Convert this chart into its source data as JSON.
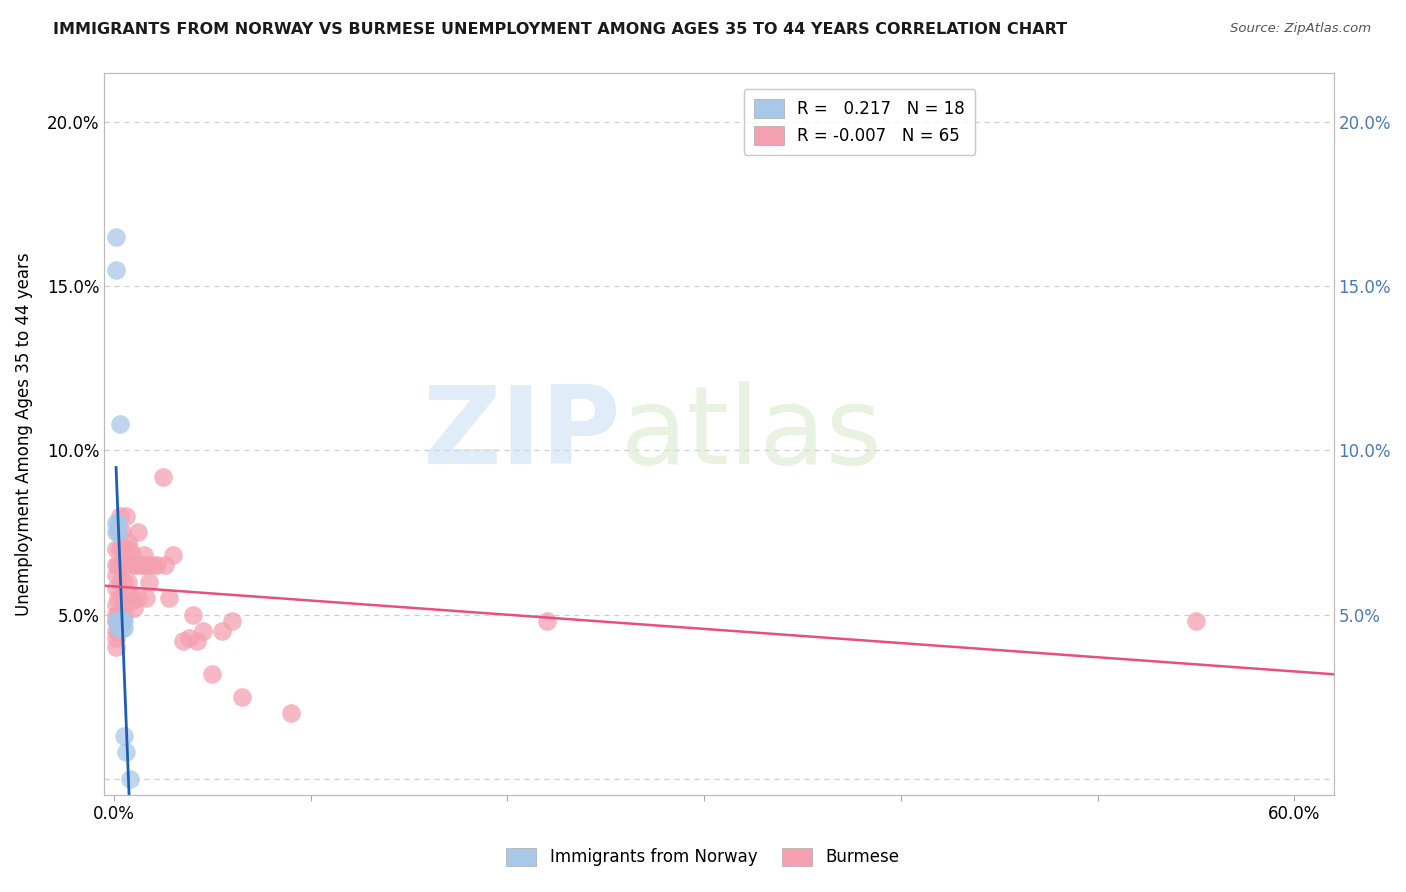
{
  "title": "IMMIGRANTS FROM NORWAY VS BURMESE UNEMPLOYMENT AMONG AGES 35 TO 44 YEARS CORRELATION CHART",
  "source": "Source: ZipAtlas.com",
  "ylabel": "Unemployment Among Ages 35 to 44 years",
  "xlim": [
    -0.005,
    0.62
  ],
  "ylim": [
    -0.005,
    0.215
  ],
  "xtick_positions": [
    0.0,
    0.1,
    0.2,
    0.3,
    0.4,
    0.5,
    0.6
  ],
  "xtick_labels_show": [
    "0.0%",
    "",
    "",
    "",
    "",
    "",
    "60.0%"
  ],
  "yticks": [
    0.0,
    0.05,
    0.1,
    0.15,
    0.2
  ],
  "ytick_labels": [
    "",
    "5.0%",
    "10.0%",
    "15.0%",
    "20.0%"
  ],
  "right_ytick_labels": [
    "",
    "5.0%",
    "10.0%",
    "15.0%",
    "20.0%"
  ],
  "norway_R": 0.217,
  "norway_N": 18,
  "burmese_R": -0.007,
  "burmese_N": 65,
  "norway_color": "#a8c8e8",
  "burmese_color": "#f4a0b0",
  "norway_line_color": "#1a5fb4",
  "burmese_line_color": "#e8507a",
  "norway_x": [
    0.001,
    0.001,
    0.001,
    0.001,
    0.001,
    0.002,
    0.002,
    0.002,
    0.002,
    0.003,
    0.003,
    0.004,
    0.004,
    0.005,
    0.005,
    0.005,
    0.006,
    0.008
  ],
  "norway_y": [
    0.165,
    0.155,
    0.078,
    0.075,
    0.048,
    0.078,
    0.075,
    0.048,
    0.046,
    0.108,
    0.048,
    0.048,
    0.046,
    0.048,
    0.046,
    0.013,
    0.008,
    0.0
  ],
  "burmese_x": [
    0.001,
    0.001,
    0.001,
    0.001,
    0.001,
    0.001,
    0.001,
    0.001,
    0.001,
    0.001,
    0.002,
    0.002,
    0.002,
    0.002,
    0.002,
    0.002,
    0.003,
    0.003,
    0.003,
    0.003,
    0.004,
    0.004,
    0.004,
    0.004,
    0.005,
    0.005,
    0.005,
    0.006,
    0.006,
    0.007,
    0.007,
    0.008,
    0.008,
    0.009,
    0.009,
    0.01,
    0.01,
    0.011,
    0.012,
    0.012,
    0.013,
    0.014,
    0.015,
    0.016,
    0.016,
    0.017,
    0.018,
    0.02,
    0.022,
    0.025,
    0.026,
    0.028,
    0.03,
    0.035,
    0.038,
    0.04,
    0.042,
    0.045,
    0.05,
    0.055,
    0.06,
    0.065,
    0.09,
    0.22,
    0.55
  ],
  "burmese_y": [
    0.07,
    0.065,
    0.062,
    0.058,
    0.053,
    0.05,
    0.048,
    0.045,
    0.043,
    0.04,
    0.075,
    0.065,
    0.055,
    0.05,
    0.048,
    0.045,
    0.08,
    0.07,
    0.06,
    0.05,
    0.075,
    0.065,
    0.055,
    0.048,
    0.07,
    0.06,
    0.05,
    0.08,
    0.065,
    0.072,
    0.06,
    0.07,
    0.056,
    0.068,
    0.054,
    0.065,
    0.052,
    0.065,
    0.075,
    0.055,
    0.065,
    0.065,
    0.068,
    0.065,
    0.055,
    0.065,
    0.06,
    0.065,
    0.065,
    0.092,
    0.065,
    0.055,
    0.068,
    0.042,
    0.043,
    0.05,
    0.042,
    0.045,
    0.032,
    0.045,
    0.048,
    0.025,
    0.02,
    0.048,
    0.048
  ],
  "watermark_zip": "ZIP",
  "watermark_atlas": "atlas",
  "legend_norway_label": "Immigrants from Norway",
  "legend_burmese_label": "Burmese",
  "background_color": "#ffffff",
  "grid_color": "#cccccc",
  "right_axis_color": "#4a7ab5"
}
